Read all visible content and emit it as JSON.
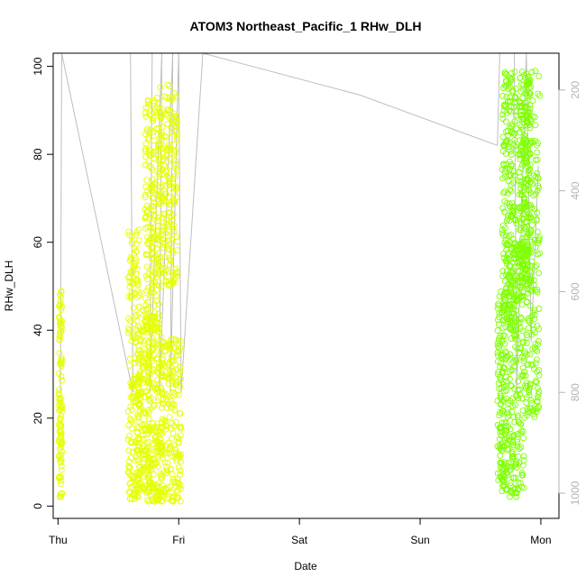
{
  "chart_data": {
    "type": "scatter",
    "title": "ATOM3 Northeast_Pacific_1 RHw_DLH",
    "xlabel": "Date",
    "ylabel": "RHw_DLH",
    "x_ticks": [
      "Thu",
      "Fri",
      "Sat",
      "Sun",
      "Mon"
    ],
    "xlim": [
      -0.04,
      4.15
    ],
    "ylim": [
      -2.8,
      103
    ],
    "y_ticks": [
      0,
      20,
      40,
      60,
      80,
      100
    ],
    "secondary_axis": {
      "ticks": [
        200,
        400,
        600,
        800,
        1000
      ],
      "range": [
        1050,
        127
      ],
      "reversed": true,
      "color": "#b3b3b3"
    },
    "grid": false,
    "legend": "none",
    "colors": {
      "early": "#e5ff00",
      "late": "#7fff00",
      "line": "#bebebe"
    },
    "series": [
      {
        "clusters": [
          {
            "x": [
              0.005,
              0.035
            ],
            "y": [
              2,
              49
            ],
            "n": 110,
            "col": "#e5ff00"
          },
          {
            "x": [
              0.58,
              0.68
            ],
            "y": [
              1.5,
              63
            ],
            "n": 180,
            "col": "#e5ff00"
          },
          {
            "x": [
              0.66,
              0.76
            ],
            "y": [
              3,
              45
            ],
            "n": 160,
            "col": "#e5ff00"
          },
          {
            "x": [
              0.72,
              0.84
            ],
            "y": [
              40,
              94
            ],
            "n": 200,
            "col": "#e5ff00"
          },
          {
            "x": [
              0.74,
              0.86
            ],
            "y": [
              1,
              42
            ],
            "n": 180,
            "col": "#e5ff00"
          },
          {
            "x": [
              0.84,
              0.99
            ],
            "y": [
              50,
              96
            ],
            "n": 200,
            "col": "#e5ff00"
          },
          {
            "x": [
              0.85,
              1.02
            ],
            "y": [
              1,
              38
            ],
            "n": 200,
            "col": "#e5ff00"
          },
          {
            "x": [
              3.64,
              3.7
            ],
            "y": [
              3,
              50
            ],
            "n": 120,
            "col": "#7fff00"
          },
          {
            "x": [
              3.68,
              3.8
            ],
            "y": [
              40,
              99
            ],
            "n": 220,
            "col": "#7fff00"
          },
          {
            "x": [
              3.7,
              3.86
            ],
            "y": [
              2,
              60
            ],
            "n": 240,
            "col": "#7fff00"
          },
          {
            "x": [
              3.82,
              3.92
            ],
            "y": [
              50,
              99
            ],
            "n": 220,
            "col": "#7fff00"
          },
          {
            "x": [
              3.86,
              3.99
            ],
            "y": [
              20,
              99
            ],
            "n": 200,
            "col": "#7fff00"
          }
        ]
      }
    ],
    "pressure_line": {
      "x": [
        0.0,
        0.02,
        0.03,
        0.62,
        0.6,
        0.78,
        0.76,
        0.86,
        0.84,
        0.95,
        0.93,
        1.0,
        1.02,
        1.2,
        2.5,
        3.64,
        3.66,
        3.78,
        3.8,
        3.88,
        3.92,
        3.98
      ],
      "p": [
        800,
        800,
        127,
        800,
        127,
        127,
        800,
        127,
        800,
        127,
        800,
        127,
        800,
        127,
        210,
        310,
        127,
        127,
        800,
        127,
        700,
        350
      ]
    }
  }
}
